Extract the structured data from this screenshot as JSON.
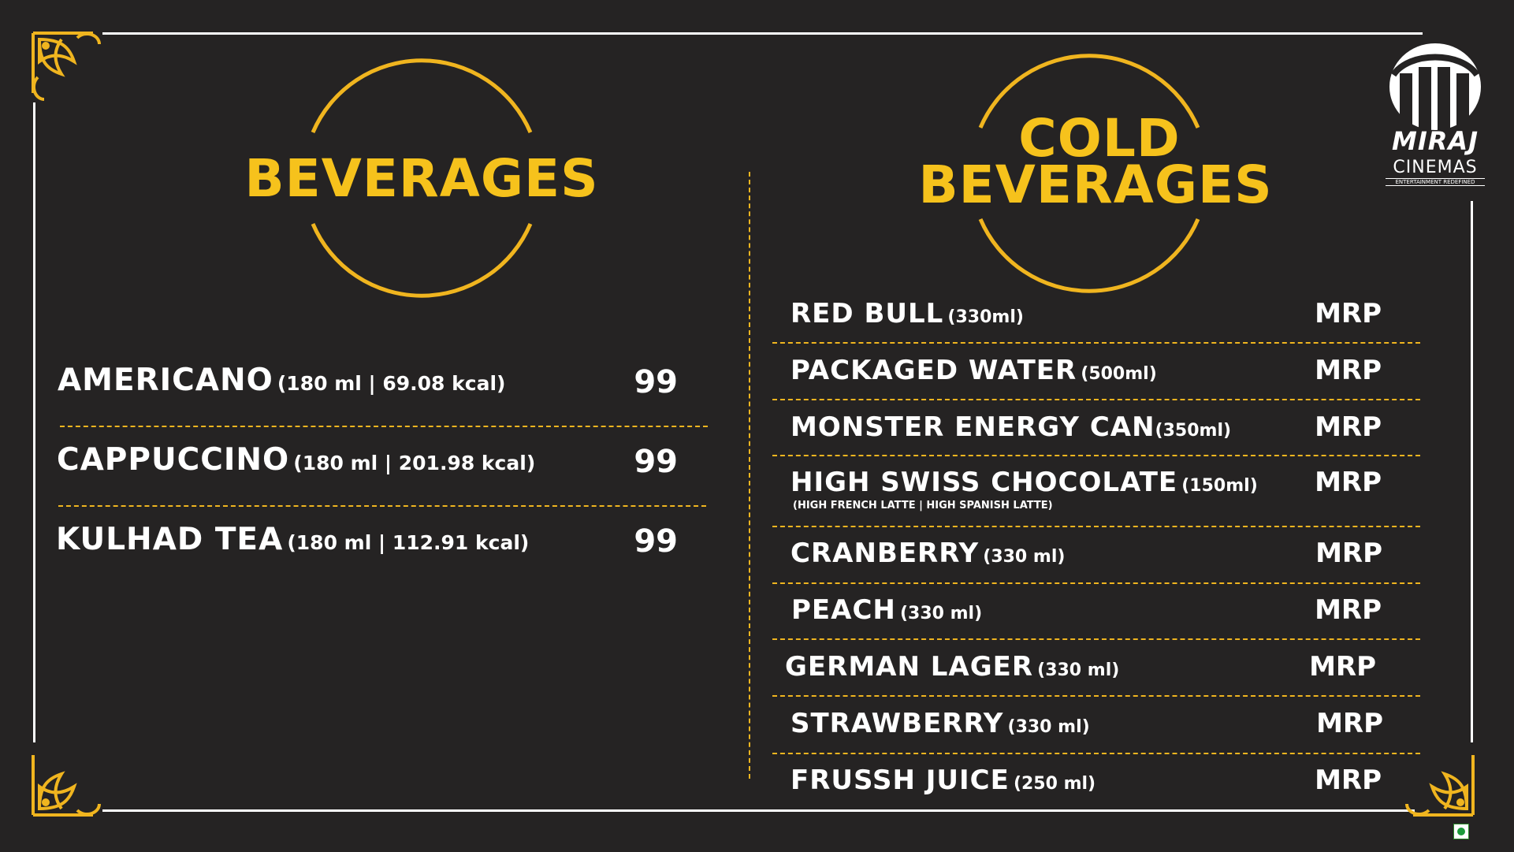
{
  "colors": {
    "background": "#252323",
    "accent": "#f6c21c",
    "text": "#ffffff",
    "veg": "#1c9a3a"
  },
  "left": {
    "title": "BEVERAGES",
    "items": [
      {
        "name": "AMERICANO",
        "detail": "(180 ml | 69.08 kcal)",
        "price": "99"
      },
      {
        "name": "CAPPUCCINO",
        "detail": "(180 ml | 201.98 kcal)",
        "price": "99"
      },
      {
        "name": "KULHAD TEA",
        "detail": "(180 ml | 112.91 kcal)",
        "price": "99"
      }
    ]
  },
  "right": {
    "title_line1": "COLD",
    "title_line2": "BEVERAGES",
    "items": [
      {
        "name": "RED BULL",
        "detail": "(330ml)",
        "price": "MRP"
      },
      {
        "name": "PACKAGED WATER",
        "detail": "(500ml)",
        "price": "MRP"
      },
      {
        "name": "MONSTER ENERGY CAN",
        "detail": "(350ml)",
        "price": "MRP"
      },
      {
        "name": "HIGH SWISS CHOCOLATE",
        "detail": "(150ml)",
        "sub": "(HIGH FRENCH LATTE | HIGH SPANISH LATTE)",
        "price": "MRP"
      },
      {
        "name": "CRANBERRY",
        "detail": "(330 ml)",
        "price": "MRP"
      },
      {
        "name": "PEACH",
        "detail": "(330 ml)",
        "price": "MRP"
      },
      {
        "name": "GERMAN LAGER",
        "detail": "(330 ml)",
        "price": "MRP"
      },
      {
        "name": "STRAWBERRY",
        "detail": "(330 ml)",
        "price": "MRP"
      },
      {
        "name": "FRUSSH JUICE",
        "detail": "(250 ml)",
        "price": "MRP"
      }
    ]
  },
  "logo": {
    "brand": "MIRAJ",
    "sub": "CINEMAS",
    "tagline": "ENTERTAINMENT REDEFINED",
    "icon": "miraj-logo-icon"
  }
}
